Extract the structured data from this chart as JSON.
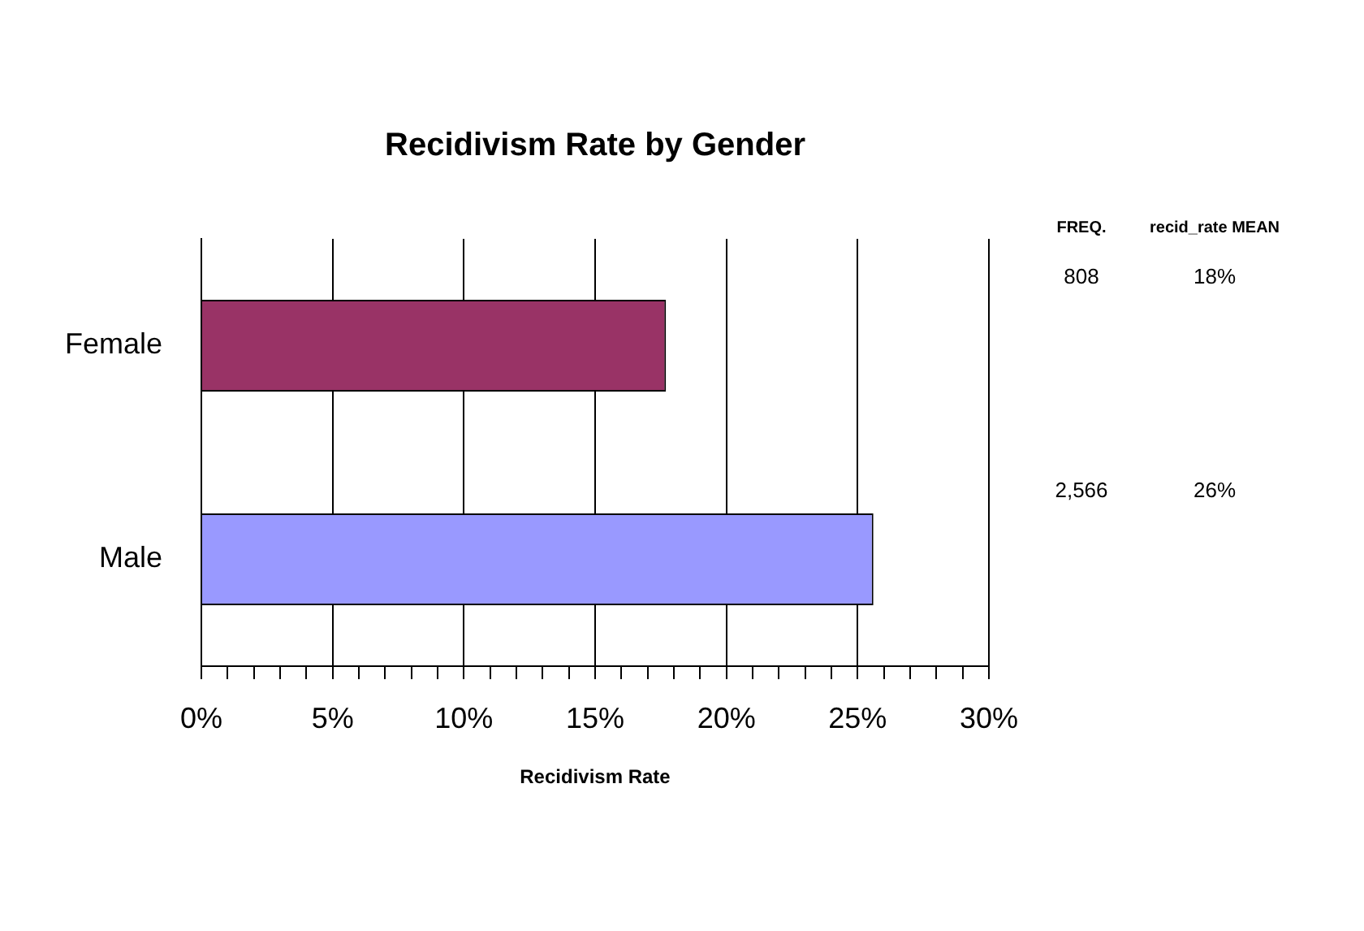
{
  "chart_data": {
    "type": "bar",
    "orientation": "horizontal",
    "title": "Recidivism Rate by Gender",
    "xlabel": "Recidivism Rate",
    "categories": [
      "Female",
      "Male"
    ],
    "values": [
      17.7,
      25.6
    ],
    "colors": [
      "#993366",
      "#9999ff"
    ],
    "value_labels": [
      "18%",
      "26%"
    ],
    "annotations": [
      "FREQ.",
      "recid_rate MEAN",
      "808",
      "2,566"
    ],
    "xlim": [
      0,
      30
    ],
    "xticks": [
      {
        "value": 0,
        "label": "0%"
      },
      {
        "value": 1,
        "label": null
      },
      {
        "value": 2,
        "label": null
      },
      {
        "value": 3,
        "label": null
      },
      {
        "value": 4,
        "label": null
      },
      {
        "value": 5,
        "label": "5%"
      },
      {
        "value": 6,
        "label": null
      },
      {
        "value": 7,
        "label": null
      },
      {
        "value": 8,
        "label": null
      },
      {
        "value": 9,
        "label": null
      },
      {
        "value": 10,
        "label": "10%"
      },
      {
        "value": 11,
        "label": null
      },
      {
        "value": 12,
        "label": null
      },
      {
        "value": 13,
        "label": null
      },
      {
        "value": 14,
        "label": null
      },
      {
        "value": 15,
        "label": "15%"
      },
      {
        "value": 16,
        "label": null
      },
      {
        "value": 17,
        "label": null
      },
      {
        "value": 18,
        "label": null
      },
      {
        "value": 19,
        "label": null
      },
      {
        "value": 20,
        "label": "20%"
      },
      {
        "value": 21,
        "label": null
      },
      {
        "value": 22,
        "label": null
      },
      {
        "value": 23,
        "label": null
      },
      {
        "value": 24,
        "label": null
      },
      {
        "value": 25,
        "label": "25%"
      },
      {
        "value": 26,
        "label": null
      },
      {
        "value": 27,
        "label": null
      },
      {
        "value": 28,
        "label": null
      },
      {
        "value": 29,
        "label": null
      },
      {
        "value": 30,
        "label": "30%"
      }
    ],
    "grid": "x",
    "legend": false
  }
}
